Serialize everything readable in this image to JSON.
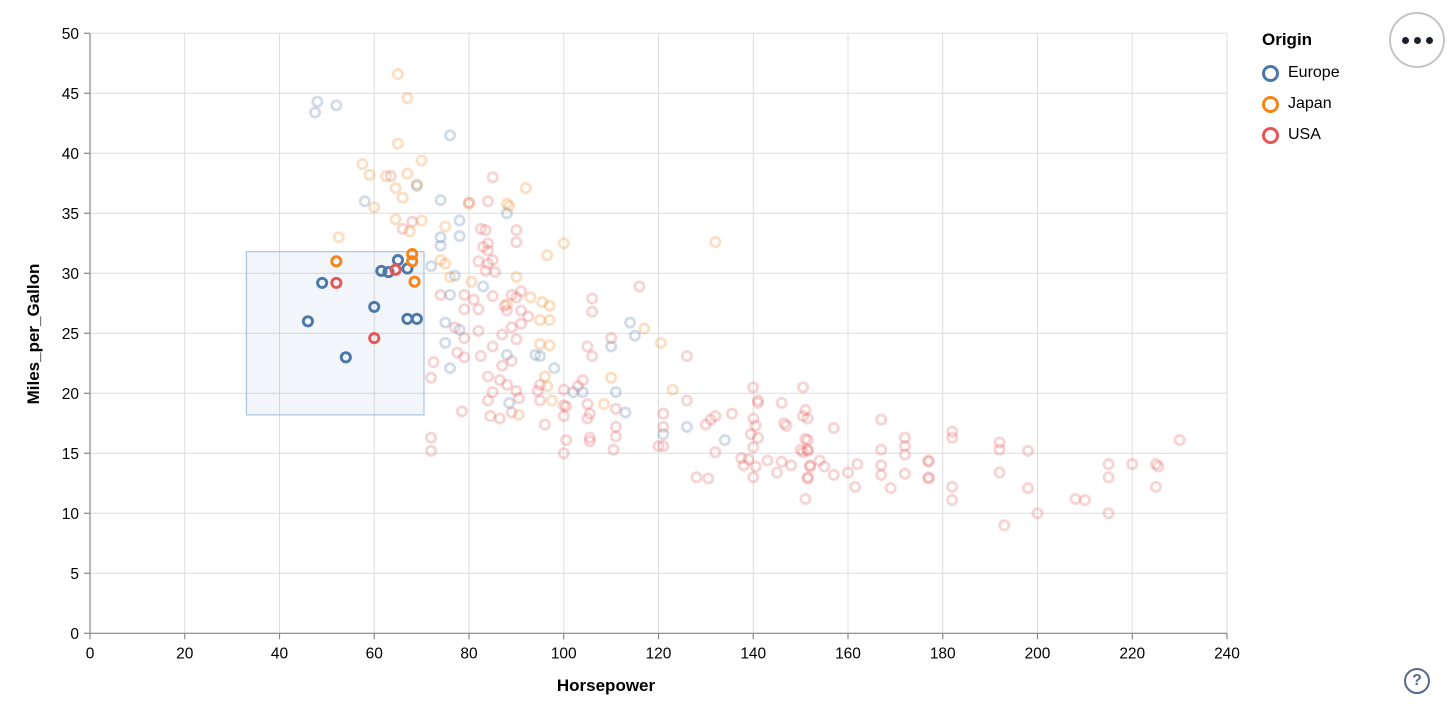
{
  "legend": {
    "title": "Origin",
    "items": [
      {
        "label": "Europe",
        "color": "#4c78a8"
      },
      {
        "label": "Japan",
        "color": "#f58518"
      },
      {
        "label": "USA",
        "color": "#e45756"
      }
    ]
  },
  "axes": {
    "x": {
      "title": "Horsepower",
      "domain": [
        0,
        240
      ],
      "ticks": [
        0,
        20,
        40,
        60,
        80,
        100,
        120,
        140,
        160,
        180,
        200,
        220,
        240
      ]
    },
    "y": {
      "title": "Miles_per_Gallon",
      "domain": [
        0,
        50
      ],
      "ticks": [
        0,
        5,
        10,
        15,
        20,
        25,
        30,
        35,
        40,
        45,
        50
      ]
    }
  },
  "controls": {
    "menu_button": "options-menu",
    "help_label": "?"
  },
  "chart_data": {
    "type": "scatter",
    "title": "",
    "x_field": "Horsepower",
    "y_field": "Miles_per_Gallon",
    "color_field": "Origin",
    "grid": true,
    "legend_position": "top-right",
    "xlim": [
      0,
      240
    ],
    "ylim": [
      0,
      50
    ],
    "brush_selection": {
      "x": [
        33,
        70.5
      ],
      "y": [
        18.2,
        31.8
      ],
      "fill": "#4c78a8",
      "fill_opacity": 0.07,
      "stroke": "#9db9dd"
    },
    "point_style": {
      "shape": "ring",
      "radius": 4.6,
      "stroke_width": 2.9,
      "unselected_opacity": 0.25
    },
    "series": [
      {
        "name": "Europe",
        "color": "#4c78a8",
        "selected": [
          [
            46,
            26
          ],
          [
            49,
            29.2
          ],
          [
            54,
            23
          ],
          [
            60,
            27.2
          ],
          [
            61.5,
            30.2
          ],
          [
            63,
            30.1
          ],
          [
            65,
            31.1
          ],
          [
            67,
            30.4
          ],
          [
            67,
            26.2
          ],
          [
            69,
            26.2
          ]
        ],
        "unselected": [
          [
            48,
            44.3
          ],
          [
            52,
            44
          ],
          [
            47.5,
            43.4
          ],
          [
            76,
            41.5
          ],
          [
            69,
            37.3
          ],
          [
            58,
            36
          ],
          [
            74,
            36.1
          ],
          [
            78,
            34.4
          ],
          [
            74,
            33
          ],
          [
            88,
            35
          ],
          [
            78,
            33.1
          ],
          [
            74,
            32.3
          ],
          [
            72,
            30.6
          ],
          [
            77,
            29.8
          ],
          [
            83,
            28.9
          ],
          [
            76,
            28.2
          ],
          [
            75,
            25.9
          ],
          [
            78,
            25.3
          ],
          [
            75,
            24.2
          ],
          [
            88,
            23.2
          ],
          [
            94,
            23.2
          ],
          [
            95,
            23.1
          ],
          [
            98,
            22.1
          ],
          [
            76,
            22.1
          ],
          [
            88.5,
            19.2
          ],
          [
            102,
            20.1
          ],
          [
            104,
            20.1
          ],
          [
            111,
            20.1
          ],
          [
            113,
            18.4
          ],
          [
            114,
            25.9
          ],
          [
            115,
            24.8
          ],
          [
            110,
            23.9
          ],
          [
            121,
            16.6
          ],
          [
            126,
            17.2
          ],
          [
            134,
            16.1
          ]
        ]
      },
      {
        "name": "Japan",
        "color": "#f58518",
        "selected": [
          [
            52,
            31
          ],
          [
            68,
            31.6
          ],
          [
            68,
            31
          ],
          [
            68.5,
            29.3
          ]
        ],
        "unselected": [
          [
            65,
            46.6
          ],
          [
            67,
            44.6
          ],
          [
            65,
            40.8
          ],
          [
            70,
            39.4
          ],
          [
            57.5,
            39.1
          ],
          [
            59,
            38.2
          ],
          [
            62.5,
            38.1
          ],
          [
            67,
            38.3
          ],
          [
            69,
            37.4
          ],
          [
            64.5,
            37.1
          ],
          [
            66,
            36.3
          ],
          [
            60,
            35.5
          ],
          [
            75,
            33.9
          ],
          [
            70,
            34.4
          ],
          [
            64.5,
            34.5
          ],
          [
            67.5,
            33.5
          ],
          [
            52.5,
            33
          ],
          [
            80,
            35.8
          ],
          [
            88,
            35.8
          ],
          [
            88.5,
            35.6
          ],
          [
            92,
            37.1
          ],
          [
            74,
            31.1
          ],
          [
            75,
            30.8
          ],
          [
            96.5,
            31.5
          ],
          [
            100,
            32.5
          ],
          [
            80.5,
            29.3
          ],
          [
            76,
            29.7
          ],
          [
            90,
            29.7
          ],
          [
            88,
            27.4
          ],
          [
            93,
            28
          ],
          [
            95.5,
            27.6
          ],
          [
            97,
            27.3
          ],
          [
            95,
            26.1
          ],
          [
            97,
            26.1
          ],
          [
            95,
            24.1
          ],
          [
            97,
            24
          ],
          [
            96,
            21.4
          ],
          [
            96.5,
            20.6
          ],
          [
            97.5,
            19.4
          ],
          [
            90.5,
            18.2
          ],
          [
            110,
            21.3
          ],
          [
            108.5,
            19.1
          ],
          [
            117,
            25.4
          ],
          [
            120.5,
            24.2
          ],
          [
            123,
            20.3
          ],
          [
            132,
            32.6
          ]
        ]
      },
      {
        "name": "USA",
        "color": "#e45756",
        "selected": [
          [
            52,
            29.2
          ],
          [
            60,
            24.6
          ],
          [
            64.5,
            30.3
          ]
        ],
        "unselected": [
          [
            63.5,
            38.1
          ],
          [
            85,
            38
          ],
          [
            84,
            36
          ],
          [
            80,
            35.9
          ],
          [
            68,
            34.3
          ],
          [
            66,
            33.7
          ],
          [
            82.5,
            33.7
          ],
          [
            83.5,
            33.6
          ],
          [
            90,
            33.6
          ],
          [
            84,
            32.5
          ],
          [
            90,
            32.6
          ],
          [
            83,
            32.2
          ],
          [
            84,
            31.9
          ],
          [
            82,
            31
          ],
          [
            85,
            31.1
          ],
          [
            83.5,
            30.2
          ],
          [
            84,
            30.8
          ],
          [
            85.5,
            30.1
          ],
          [
            116,
            28.9
          ],
          [
            106,
            27.9
          ],
          [
            106,
            26.8
          ],
          [
            91,
            28.5
          ],
          [
            89,
            28.2
          ],
          [
            90,
            28
          ],
          [
            85,
            28.1
          ],
          [
            79,
            28.2
          ],
          [
            74,
            28.2
          ],
          [
            81,
            27.8
          ],
          [
            79,
            27
          ],
          [
            82,
            27
          ],
          [
            87.5,
            27.3
          ],
          [
            88,
            26.9
          ],
          [
            91,
            26.9
          ],
          [
            92.5,
            26.4
          ],
          [
            91,
            25.8
          ],
          [
            89,
            25.5
          ],
          [
            77,
            25.5
          ],
          [
            79,
            24.6
          ],
          [
            82,
            25.2
          ],
          [
            87,
            24.9
          ],
          [
            90,
            24.5
          ],
          [
            85,
            23.9
          ],
          [
            82.5,
            23.1
          ],
          [
            89,
            22.7
          ],
          [
            87,
            22.3
          ],
          [
            77.5,
            23.4
          ],
          [
            79,
            23
          ],
          [
            72.5,
            22.6
          ],
          [
            72,
            21.3
          ],
          [
            84,
            21.4
          ],
          [
            86.5,
            21.1
          ],
          [
            88,
            20.7
          ],
          [
            85,
            20.1
          ],
          [
            84,
            19.4
          ],
          [
            90,
            20.2
          ],
          [
            90.5,
            19.6
          ],
          [
            84.5,
            18.1
          ],
          [
            86.5,
            17.9
          ],
          [
            89,
            18.4
          ],
          [
            78.5,
            18.5
          ],
          [
            95,
            20.7
          ],
          [
            94.5,
            20.2
          ],
          [
            95,
            19.4
          ],
          [
            96,
            17.4
          ],
          [
            100,
            20.3
          ],
          [
            100,
            19
          ],
          [
            100.5,
            18.9
          ],
          [
            100,
            18.1
          ],
          [
            100.5,
            16.1
          ],
          [
            100,
            15
          ],
          [
            103,
            20.6
          ],
          [
            104,
            21.1
          ],
          [
            105,
            23.9
          ],
          [
            106,
            23.1
          ],
          [
            105,
            19.1
          ],
          [
            105,
            17.9
          ],
          [
            105.5,
            16
          ],
          [
            105.5,
            18.3
          ],
          [
            105.5,
            16.3
          ],
          [
            110,
            24.6
          ],
          [
            111,
            18.7
          ],
          [
            111,
            17.2
          ],
          [
            111,
            16.4
          ],
          [
            110.5,
            15.3
          ],
          [
            126,
            23.1
          ],
          [
            126,
            19.4
          ],
          [
            121,
            18.3
          ],
          [
            121,
            17.2
          ],
          [
            121,
            15.6
          ],
          [
            120,
            15.6
          ],
          [
            131,
            17.8
          ],
          [
            132,
            18.1
          ],
          [
            130,
            17.4
          ],
          [
            132,
            15.1
          ],
          [
            128,
            13
          ],
          [
            130.5,
            12.9
          ],
          [
            135.5,
            18.3
          ],
          [
            137.5,
            14.6
          ],
          [
            138,
            14
          ],
          [
            139,
            14.5
          ],
          [
            140,
            20.5
          ],
          [
            141,
            19.4
          ],
          [
            141,
            19.2
          ],
          [
            140,
            17.9
          ],
          [
            140.5,
            17.3
          ],
          [
            139.5,
            16.6
          ],
          [
            141,
            16.3
          ],
          [
            140,
            15.5
          ],
          [
            143,
            14.4
          ],
          [
            140.5,
            13.9
          ],
          [
            140,
            13
          ],
          [
            145,
            13.4
          ],
          [
            146,
            14.3
          ],
          [
            146,
            19.2
          ],
          [
            146.5,
            17.5
          ],
          [
            147,
            17.3
          ],
          [
            148,
            14
          ],
          [
            150.5,
            20.5
          ],
          [
            150.5,
            18.1
          ],
          [
            150,
            15.3
          ],
          [
            150.5,
            15.1
          ],
          [
            151,
            18.6
          ],
          [
            151.5,
            17.9
          ],
          [
            151,
            16.2
          ],
          [
            151.5,
            16.1
          ],
          [
            151.5,
            15.3
          ],
          [
            151.5,
            15.2
          ],
          [
            152,
            14
          ],
          [
            152,
            13.9
          ],
          [
            151.5,
            13
          ],
          [
            151.5,
            12.9
          ],
          [
            151,
            11.2
          ],
          [
            154,
            14.4
          ],
          [
            155,
            13.9
          ],
          [
            157,
            17.1
          ],
          [
            157,
            13.2
          ],
          [
            160,
            13.4
          ],
          [
            161.5,
            12.2
          ],
          [
            162,
            14.1
          ],
          [
            167,
            17.8
          ],
          [
            167,
            15.3
          ],
          [
            167,
            14
          ],
          [
            167,
            13.2
          ],
          [
            169,
            12.1
          ],
          [
            172,
            16.3
          ],
          [
            172,
            15.6
          ],
          [
            172,
            14.9
          ],
          [
            172,
            13.3
          ],
          [
            177,
            14.4
          ],
          [
            177,
            14.3
          ],
          [
            177,
            13
          ],
          [
            177,
            12.9
          ],
          [
            182,
            16.8
          ],
          [
            182,
            16.3
          ],
          [
            182,
            12.2
          ],
          [
            182,
            11.1
          ],
          [
            192,
            15.9
          ],
          [
            192,
            15.3
          ],
          [
            192,
            13.4
          ],
          [
            193,
            9
          ],
          [
            198,
            15.2
          ],
          [
            198,
            12.1
          ],
          [
            200,
            10
          ],
          [
            208,
            11.2
          ],
          [
            210,
            11.1
          ],
          [
            215,
            14.1
          ],
          [
            215,
            13
          ],
          [
            215,
            10
          ],
          [
            220,
            14.1
          ],
          [
            225,
            14.1
          ],
          [
            225.5,
            13.9
          ],
          [
            225,
            12.2
          ],
          [
            230,
            16.1
          ],
          [
            72,
            16.3
          ],
          [
            72,
            15.2
          ]
        ]
      }
    ]
  }
}
